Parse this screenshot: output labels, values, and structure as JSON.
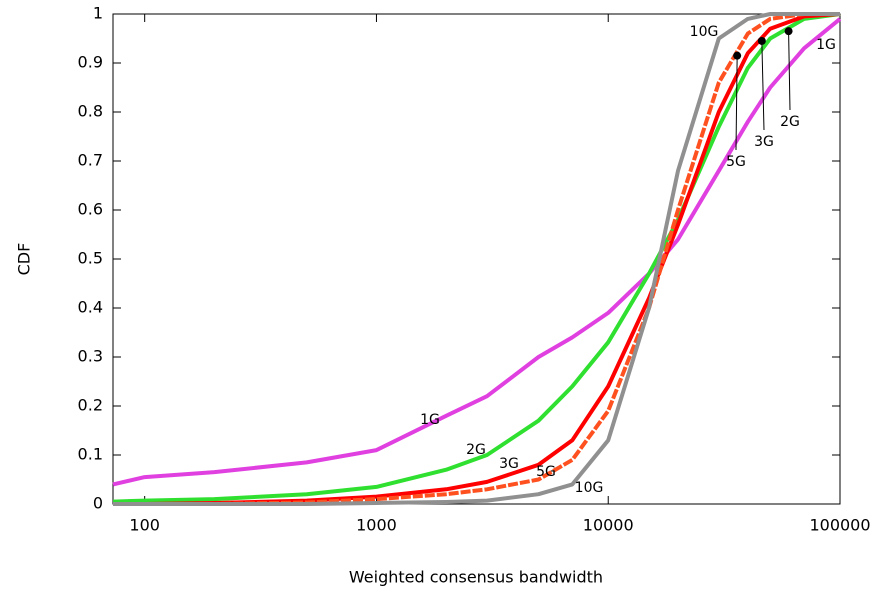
{
  "chart_data": {
    "type": "line",
    "x_label": "Weighted consensus bandwidth",
    "y_label": "CDF",
    "log_x": true,
    "xlim": [
      73,
      100000
    ],
    "ylim": [
      0,
      1
    ],
    "xticks": [
      100,
      1000,
      10000,
      100000
    ],
    "yticks": [
      0,
      0.1,
      0.2,
      0.3,
      0.4,
      0.5,
      0.6,
      0.7,
      0.8,
      0.9,
      1
    ],
    "x": [
      73,
      100,
      200,
      500,
      1000,
      2000,
      3000,
      5000,
      7000,
      10000,
      15000,
      20000,
      30000,
      40000,
      50000,
      70000,
      100000
    ],
    "series": [
      {
        "name": "1G",
        "color": "#e040e0",
        "values": [
          0.04,
          0.055,
          0.065,
          0.085,
          0.11,
          0.18,
          0.22,
          0.3,
          0.34,
          0.39,
          0.47,
          0.54,
          0.68,
          0.78,
          0.85,
          0.93,
          0.99
        ]
      },
      {
        "name": "2G",
        "color": "#30e030",
        "values": [
          0.005,
          0.007,
          0.01,
          0.02,
          0.035,
          0.07,
          0.1,
          0.17,
          0.24,
          0.33,
          0.47,
          0.58,
          0.77,
          0.89,
          0.95,
          0.99,
          1
        ],
        "marker": {
          "x": 60000,
          "y": 0.965
        }
      },
      {
        "name": "3G",
        "color": "#ff0000",
        "values": [
          0,
          0,
          0.002,
          0.007,
          0.015,
          0.03,
          0.045,
          0.08,
          0.13,
          0.24,
          0.42,
          0.57,
          0.8,
          0.92,
          0.97,
          0.995,
          1
        ],
        "marker": {
          "x": 46000,
          "y": 0.945
        }
      },
      {
        "name": "5G",
        "color": "#ff5020",
        "values": [
          0,
          0,
          0,
          0.003,
          0.01,
          0.02,
          0.03,
          0.05,
          0.09,
          0.19,
          0.4,
          0.6,
          0.86,
          0.96,
          0.99,
          1,
          1
        ],
        "marker": {
          "x": 36000,
          "y": 0.915
        }
      },
      {
        "name": "10G",
        "color": "#909090",
        "values": [
          0,
          0,
          0,
          0,
          0.002,
          0.004,
          0.007,
          0.02,
          0.04,
          0.13,
          0.4,
          0.68,
          0.95,
          0.99,
          1,
          1,
          1
        ]
      }
    ]
  }
}
